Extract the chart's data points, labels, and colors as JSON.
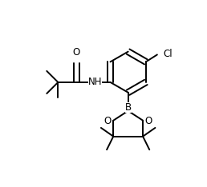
{
  "bg_color": "#ffffff",
  "line_color": "#000000",
  "line_width": 1.4,
  "font_size": 8.5,
  "figsize": [
    2.58,
    2.34
  ],
  "dpi": 100,
  "xlim": [
    0,
    10
  ],
  "ylim": [
    0,
    9.1
  ]
}
